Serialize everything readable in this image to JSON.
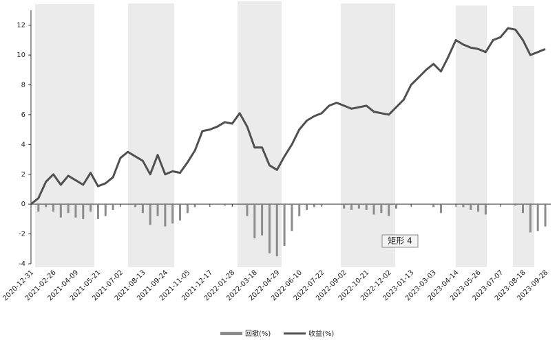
{
  "chart_data": {
    "type": "bar-line",
    "categories": [
      "2020-12-31",
      null,
      null,
      "2021-02-26",
      null,
      null,
      "2021-04-09",
      null,
      null,
      "2021-05-21",
      null,
      null,
      "2021-07-02",
      null,
      null,
      "2021-08-13",
      null,
      null,
      "2021-09-24",
      null,
      null,
      "2021-11-05",
      null,
      null,
      "2021-12-17",
      null,
      null,
      "2022-01-28",
      null,
      null,
      "2022-03-18",
      null,
      null,
      "2022-04-29",
      null,
      null,
      "2022-06-10",
      null,
      null,
      "2022-07-22",
      null,
      null,
      "2022-09-02",
      null,
      null,
      "2022-10-21",
      null,
      null,
      "2022-12-02",
      null,
      null,
      "2023-01-13",
      null,
      null,
      "2023-03-03",
      null,
      null,
      "2023-04-14",
      null,
      null,
      "2023-05-26",
      null,
      null,
      "2023-07-07",
      null,
      null,
      "2023-08-18",
      null,
      null,
      "2023-09-28"
    ],
    "series": [
      {
        "name": "回撤(%)",
        "kind": "bar",
        "color": "#8c8c8c",
        "values": [
          0,
          -0.5,
          -0.2,
          -0.5,
          -0.9,
          -0.6,
          -0.9,
          -1.0,
          -0.5,
          -1.0,
          -0.8,
          -0.4,
          0,
          0,
          -0.2,
          -0.6,
          -1.4,
          -0.8,
          -1.5,
          -1.3,
          -1.1,
          -0.6,
          -0.2,
          0,
          0,
          0,
          -0.1,
          0,
          0,
          -0.8,
          -2.3,
          -2.1,
          -3.3,
          -3.5,
          -2.8,
          -1.8,
          -0.8,
          -0.4,
          -0.2,
          -0.1,
          0,
          0,
          -0.3,
          -0.4,
          -0.3,
          -0.4,
          -0.7,
          -0.6,
          -0.8,
          -0.3,
          0,
          0,
          0,
          0,
          -0.2,
          -0.6,
          0,
          0,
          -0.2,
          -0.4,
          -0.5,
          -0.7,
          0,
          0,
          0,
          -0.1,
          -0.6,
          -1.9,
          -1.8,
          -1.5
        ]
      },
      {
        "name": "收益(%)",
        "kind": "line",
        "color": "#505050",
        "values": [
          0,
          0.4,
          1.5,
          2.0,
          1.3,
          1.9,
          1.6,
          1.3,
          2.1,
          1.2,
          1.4,
          1.8,
          3.1,
          3.5,
          3.2,
          2.9,
          2.0,
          3.3,
          2.0,
          2.2,
          2.1,
          2.8,
          3.6,
          4.9,
          5.0,
          5.2,
          5.5,
          5.4,
          6.1,
          5.2,
          3.8,
          3.8,
          2.6,
          2.3,
          3.2,
          4.0,
          5.0,
          5.6,
          5.9,
          6.1,
          6.6,
          6.8,
          6.6,
          6.4,
          6.5,
          6.6,
          6.2,
          6.1,
          6.0,
          6.5,
          7.0,
          8.0,
          8.5,
          9.0,
          9.4,
          8.9,
          9.9,
          11.0,
          10.7,
          10.5,
          10.4,
          10.2,
          11.0,
          11.2,
          11.8,
          11.7,
          11.0,
          10.0,
          10.2,
          10.4
        ]
      }
    ],
    "ylim": [
      -4,
      13
    ],
    "yticks": [
      -4,
      -2,
      0,
      2,
      4,
      6,
      8,
      10,
      12
    ],
    "annotation": "矩形 4",
    "legend": "bottom"
  }
}
